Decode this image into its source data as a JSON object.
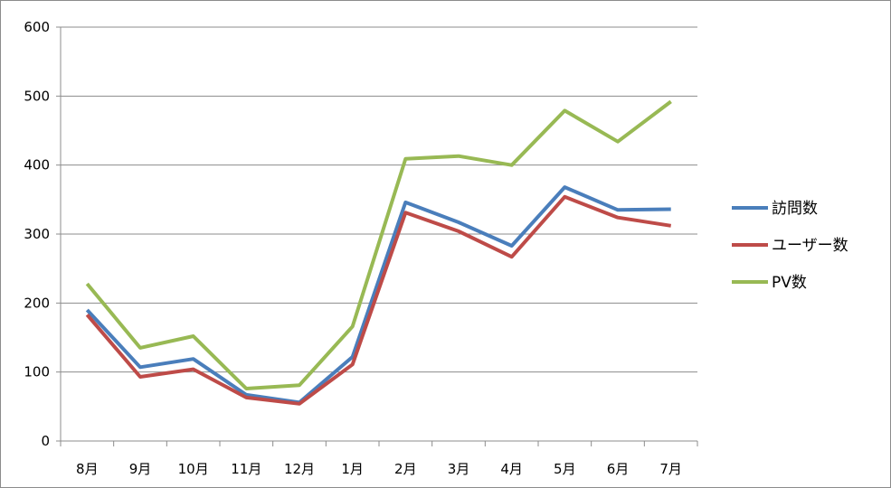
{
  "chart_data": {
    "type": "line",
    "categories": [
      "8月",
      "9月",
      "10月",
      "11月",
      "12月",
      "1月",
      "2月",
      "3月",
      "4月",
      "5月",
      "6月",
      "7月"
    ],
    "ylim": [
      0,
      600
    ],
    "yticks": [
      0,
      100,
      200,
      300,
      400,
      500,
      600
    ],
    "grid": true,
    "legend_position": "right",
    "series": [
      {
        "name": "訪問数",
        "color": "#4a7ebb",
        "values": [
          190,
          107,
          119,
          67,
          56,
          122,
          346,
          317,
          283,
          368,
          335,
          336
        ]
      },
      {
        "name": "ユーザー数",
        "color": "#be4b48",
        "values": [
          183,
          93,
          104,
          63,
          54,
          111,
          331,
          304,
          267,
          354,
          324,
          312
        ]
      },
      {
        "name": "PV数",
        "color": "#98b954",
        "values": [
          228,
          135,
          152,
          76,
          81,
          166,
          409,
          413,
          400,
          479,
          434,
          492
        ]
      }
    ]
  }
}
